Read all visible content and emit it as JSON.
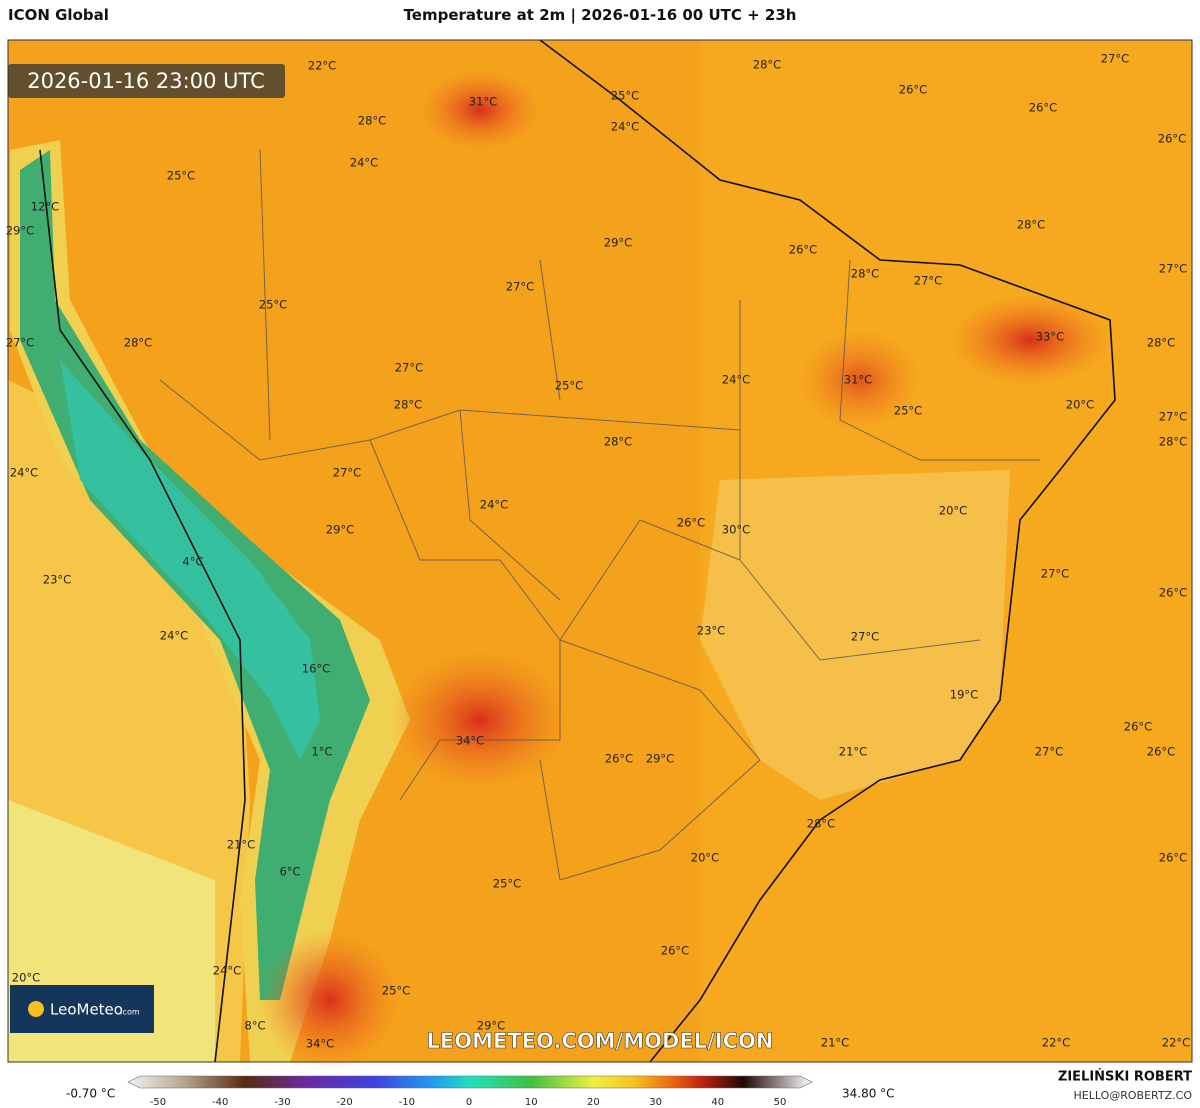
{
  "header": {
    "model": "ICON Global",
    "title": "Temperature at 2m | 2026-01-16 00 UTC + 23h",
    "timestamp": "2026-01-16 23:00 UTC"
  },
  "map": {
    "labels": [
      "22°C",
      "31°C",
      "28°C",
      "24°C",
      "25°C",
      "24°C",
      "28°C",
      "27°C",
      "26°C",
      "26°C",
      "26°C",
      "25°C",
      "12°C",
      "29°C",
      "29°C",
      "26°C",
      "28°C",
      "28°C",
      "27°C",
      "27°C",
      "25°C",
      "27°C",
      "33°C",
      "27°C",
      "28°C",
      "28°C",
      "27°C",
      "25°C",
      "24°C",
      "31°C",
      "28°C",
      "25°C",
      "20°C",
      "27°C",
      "28°C",
      "28°C",
      "24°C",
      "27°C",
      "24°C",
      "20°C",
      "26°C",
      "30°C",
      "29°C",
      "4°C",
      "23°C",
      "27°C",
      "26°C",
      "24°C",
      "23°C",
      "27°C",
      "16°C",
      "19°C",
      "34°C",
      "1°C",
      "26°C",
      "29°C",
      "21°C",
      "27°C",
      "26°C",
      "26°C",
      "28°C",
      "21°C",
      "20°C",
      "26°C",
      "6°C",
      "25°C",
      "26°C",
      "20°C",
      "24°C",
      "25°C",
      "29°C",
      "8°C",
      "34°C",
      "21°C",
      "22°C",
      "22°C"
    ],
    "watermark": "LEOMETEO.COM/MODEL/ICON",
    "logo": {
      "name": "LeoMeteo",
      "suffix": ".com"
    }
  },
  "legend": {
    "min": "-0.70 °C",
    "max": "34.80 °C",
    "ticks": [
      -50,
      -40,
      -30,
      -20,
      -10,
      0,
      10,
      20,
      30,
      40,
      50
    ]
  },
  "credits": {
    "author": "ZIELIŃSKI ROBERT",
    "contact": "HELLO@ROBERTZ.CO"
  }
}
